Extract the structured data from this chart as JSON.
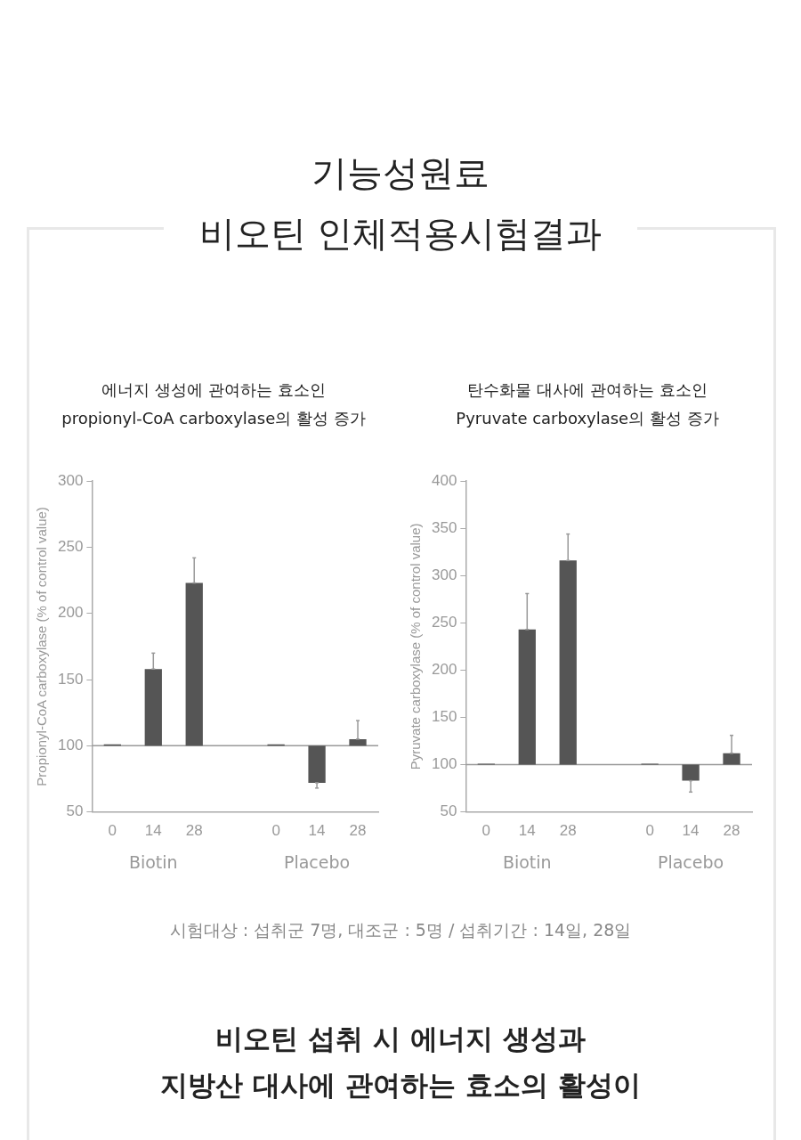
{
  "chart_data": [
    {
      "type": "other",
      "title": "기능성원료\n비오틴 인체적용시험결과"
    },
    {
      "type": "bar",
      "title": "에너지 생성에 관여하는 효소인\npropionyl-CoA carboxylase의 활성 증가",
      "ylabel": "Propionyl-CoA carboxylase (% of control value)",
      "categories": [
        "0",
        "14",
        "28",
        null,
        "0",
        "14",
        "28"
      ],
      "base": [
        100,
        100,
        100,
        null,
        100,
        100,
        100
      ],
      "values": [
        1,
        58,
        123,
        null,
        1,
        -28,
        5
      ],
      "errors": [
        null,
        [
          158,
          170
        ],
        [
          223,
          242
        ],
        null,
        null,
        [
          68,
          72
        ],
        [
          105,
          119
        ]
      ],
      "color": "#555555",
      "ylim": [
        50,
        300
      ],
      "yticks": [
        50,
        100,
        150,
        200,
        250,
        300
      ],
      "grid": false,
      "legend": false,
      "ref_lines": [
        {
          "axis": "y",
          "value": 100,
          "color": "#999999"
        }
      ],
      "annotations": [
        "Biotin",
        "Placebo"
      ]
    },
    {
      "type": "bar",
      "title": "탄수화물 대사에 관여하는 효소인\nPyruvate carboxylase의 활성 증가",
      "ylabel": "Pyruvate carboxylase (% of control value)",
      "categories": [
        "0",
        "14",
        "28",
        null,
        "0",
        "14",
        "28"
      ],
      "base": [
        100,
        100,
        100,
        null,
        100,
        100,
        100
      ],
      "values": [
        1,
        143,
        216,
        null,
        1,
        -17,
        12
      ],
      "errors": [
        null,
        [
          243,
          281
        ],
        [
          316,
          344
        ],
        null,
        null,
        [
          71,
          83
        ],
        [
          112,
          131
        ]
      ],
      "color": "#555555",
      "ylim": [
        50,
        400
      ],
      "yticks": [
        50,
        100,
        150,
        200,
        250,
        300,
        350,
        400
      ],
      "grid": false,
      "legend": false,
      "ref_lines": [
        {
          "axis": "y",
          "value": 100,
          "color": "#999999"
        }
      ],
      "annotations": [
        "Biotin",
        "Placebo"
      ]
    },
    {
      "type": "other",
      "annotations": [
        "시험대상 : 섭취군 7명, 대조군 : 5명 / 섭취기간 : 14일, 28일",
        "비오틴 섭취 시 에너지 생성과\n지방산 대사에 관여하는 효소의 활성이"
      ]
    }
  ]
}
